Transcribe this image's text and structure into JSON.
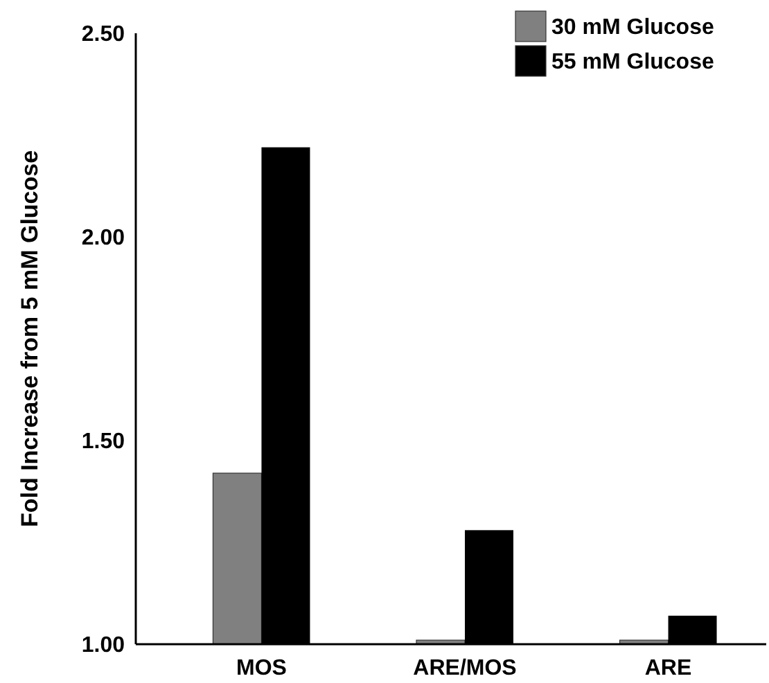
{
  "chart_data": {
    "type": "bar",
    "ylabel": "Fold Increase from 5 mM Glucose",
    "categories": [
      "MOS",
      "ARE/MOS",
      "ARE"
    ],
    "series": [
      {
        "name": "30 mM Glucose",
        "color": "#808080",
        "values": [
          1.42,
          1.01,
          1.01
        ]
      },
      {
        "name": "55 mM Glucose",
        "color": "#000000",
        "values": [
          2.22,
          1.28,
          1.07
        ]
      }
    ],
    "ylim": [
      1.0,
      2.5
    ],
    "yticks": [
      {
        "value": 1.0,
        "label": "1.00"
      },
      {
        "value": 1.5,
        "label": "1.50"
      },
      {
        "value": 2.0,
        "label": "2.00"
      },
      {
        "value": 2.5,
        "label": "2.50"
      }
    ],
    "grid": false,
    "legend": "top right"
  }
}
